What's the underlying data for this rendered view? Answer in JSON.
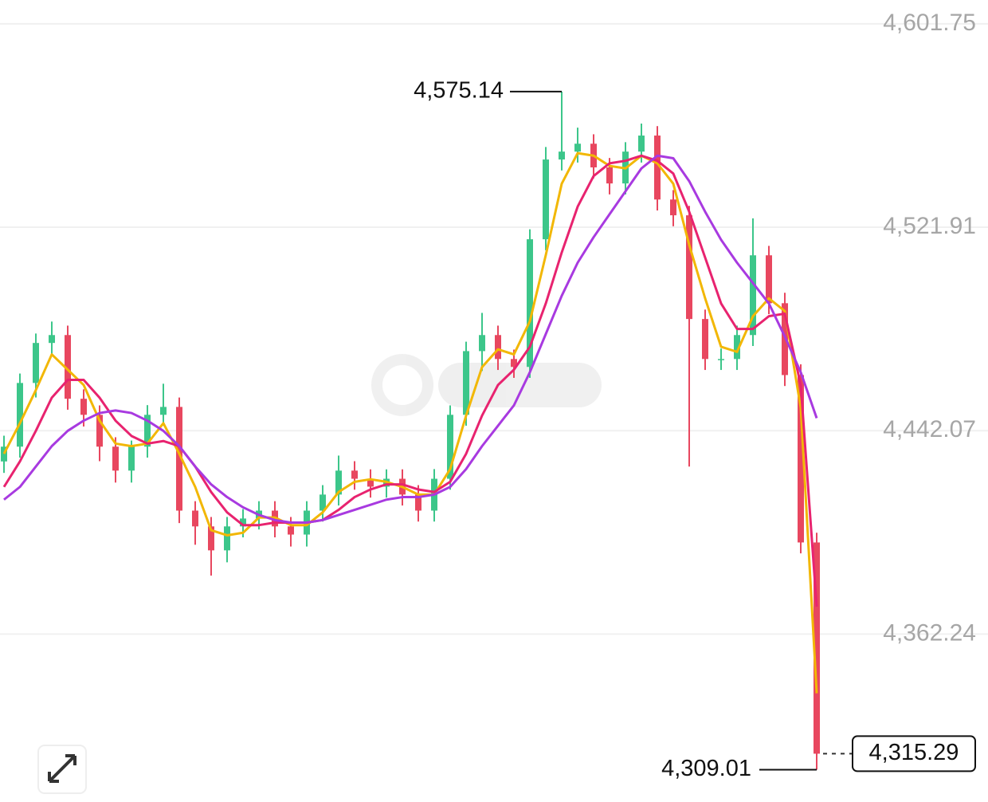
{
  "chart_data": {
    "type": "candlestick",
    "ylim": [
      4297.9,
      4611.1
    ],
    "yticks": [
      {
        "value": 4601.75,
        "label": "4,601.75"
      },
      {
        "value": 4521.91,
        "label": "4,521.91"
      },
      {
        "value": 4442.07,
        "label": "4,442.07"
      },
      {
        "value": 4362.24,
        "label": "4,362.24"
      }
    ],
    "grid": true,
    "up_color": "#3cc68a",
    "down_color": "#e8475f",
    "open": [
      4430.0,
      4435.8,
      4460.8,
      4476.5,
      4479.6,
      4454.6,
      4448.3,
      4435.8,
      4426.4,
      4435.8,
      4448.3,
      4451.4,
      4410.7,
      4404.5,
      4395.1,
      4404.5,
      4407.6,
      4410.7,
      4404.5,
      4401.3,
      4410.7,
      4417.0,
      4426.4,
      4423.2,
      4420.1,
      4423.2,
      4417.0,
      4410.7,
      4423.2,
      4448.3,
      4473.3,
      4479.6,
      4470.2,
      4467.1,
      4517.2,
      4548.5,
      4551.6,
      4554.7,
      4545.4,
      4539.1,
      4551.6,
      4557.9,
      4532.8,
      4526.6,
      4485.9,
      4470.2,
      4470.2,
      4479.6,
      4510.9,
      4492.1,
      4463.9,
      4398.2
    ],
    "high": [
      4440.1,
      4464.5,
      4480.2,
      4484.9,
      4483.3,
      4458.3,
      4452.0,
      4439.5,
      4438.2,
      4452.1,
      4460.5,
      4455.1,
      4414.4,
      4408.2,
      4408.2,
      4411.3,
      4414.4,
      4414.4,
      4408.2,
      4414.4,
      4420.7,
      4432.3,
      4430.1,
      4426.9,
      4426.9,
      4426.9,
      4420.7,
      4427.0,
      4452.0,
      4477.0,
      4488.3,
      4483.3,
      4473.9,
      4521.1,
      4553.4,
      4575.14,
      4561.0,
      4558.4,
      4549.1,
      4555.3,
      4562.6,
      4561.6,
      4536.5,
      4530.3,
      4489.6,
      4474.3,
      4483.3,
      4525.4,
      4514.6,
      4496.2,
      4468.1,
      4402.0
    ],
    "low": [
      4425.5,
      4431.5,
      4455.1,
      4472.3,
      4450.3,
      4443.7,
      4430.1,
      4421.7,
      4421.7,
      4431.5,
      4444.0,
      4405.8,
      4397.3,
      4385.2,
      4390.4,
      4400.2,
      4403.3,
      4400.2,
      4396.6,
      4396.6,
      4406.4,
      4412.7,
      4418.9,
      4415.8,
      4415.8,
      4412.7,
      4406.4,
      4406.4,
      4418.9,
      4444.0,
      4465.5,
      4465.9,
      4462.8,
      4462.8,
      4512.9,
      4544.2,
      4547.3,
      4541.1,
      4534.8,
      4534.8,
      4547.3,
      4528.5,
      4522.3,
      4428.0,
      4465.9,
      4465.9,
      4465.9,
      4475.3,
      4487.8,
      4459.6,
      4393.9,
      4309.01
    ],
    "close": [
      4435.8,
      4460.8,
      4476.5,
      4479.6,
      4454.6,
      4448.3,
      4435.8,
      4426.4,
      4435.8,
      4448.3,
      4451.4,
      4410.7,
      4404.5,
      4395.1,
      4404.5,
      4407.6,
      4410.7,
      4404.5,
      4401.3,
      4410.7,
      4417.0,
      4426.4,
      4423.2,
      4420.1,
      4423.2,
      4417.0,
      4410.7,
      4423.2,
      4448.3,
      4473.3,
      4479.6,
      4470.2,
      4467.1,
      4517.2,
      4548.5,
      4551.6,
      4554.7,
      4545.4,
      4539.1,
      4551.6,
      4557.9,
      4532.8,
      4526.6,
      4485.9,
      4470.2,
      4470.2,
      4479.6,
      4510.9,
      4492.1,
      4463.9,
      4398.2,
      4315.29
    ],
    "series": [
      {
        "color": "#f2b705",
        "values": [
          4433,
          4445,
          4458,
          4472,
          4466,
          4460,
          4446,
          4437,
          4436,
          4437,
          4445,
          4433,
          4420,
          4403,
          4401,
          4402,
          4408,
          4408,
          4405,
          4405,
          4410,
          4418,
          4422,
          4423,
          4422,
          4420,
          4417,
          4417,
          4427,
          4448,
          4467,
          4474,
          4472,
          4485,
          4511,
          4539,
          4551,
          4550,
          4546,
          4545,
          4550,
          4547,
          4539,
          4515,
          4494,
          4475,
          4473,
          4487,
          4494,
          4489,
          4451,
          4339
        ]
      },
      {
        "color": "#e8236f",
        "values": [
          4420,
          4430,
          4442,
          4455,
          4462,
          4462,
          4455,
          4446,
          4440,
          4437,
          4438,
          4436,
          4428,
          4418,
          4410,
          4405,
          4405,
          4406,
          4406,
          4406,
          4407,
          4411,
          4416,
          4419,
          4421,
          4421,
          4419,
          4418,
          4422,
          4433,
          4448,
          4460,
          4466,
          4475,
          4492,
          4512,
          4530,
          4542,
          4547,
          4548,
          4550,
          4548,
          4543,
          4528,
          4510,
          4492,
          4482,
          4482,
          4487,
          4488,
          4460,
          4373
        ]
      },
      {
        "color": "#a83ae0",
        "values": [
          4415,
          4420,
          4428,
          4436,
          4442,
          4446,
          4449,
          4450,
          4449,
          4446,
          4442,
          4436,
          4428,
          4421,
          4416,
          4412,
          4409,
          4407,
          4406,
          4406,
          4407,
          4409,
          4411,
          4413,
          4415,
          4416,
          4416,
          4417,
          4420,
          4427,
          4436,
          4444,
          4452,
          4465,
          4480,
          4495,
          4508,
          4518,
          4527,
          4536,
          4545,
          4550,
          4549,
          4540,
          4528,
          4517,
          4508,
          4500,
          4492,
          4479,
          4465,
          4447
        ]
      }
    ],
    "high_label": {
      "value": 4575.14,
      "label": "4,575.14"
    },
    "low_label": {
      "value": 4309.01,
      "label": "4,309.01"
    },
    "last_price": {
      "value": 4315.29,
      "label": "4,315.29"
    }
  }
}
